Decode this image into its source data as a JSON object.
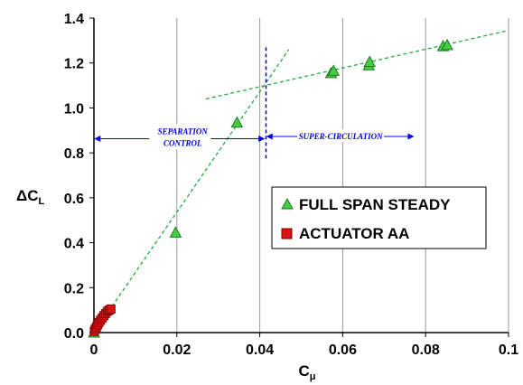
{
  "chart_data": {
    "type": "scatter",
    "xlim": [
      0,
      0.1
    ],
    "ylim": [
      0,
      1.4
    ],
    "x_ticks": [
      "0",
      "0.02",
      "0.04",
      "0.06",
      "0.08",
      "0.1"
    ],
    "y_ticks": [
      "0.0",
      "0.2",
      "0.4",
      "0.6",
      "0.8",
      "1.0",
      "1.2",
      "1.4"
    ],
    "x_tick_values": [
      0,
      0.02,
      0.04,
      0.06,
      0.08,
      0.1
    ],
    "y_tick_values": [
      0,
      0.2,
      0.4,
      0.6,
      0.8,
      1.0,
      1.2,
      1.4
    ],
    "xlabel": {
      "main": "C",
      "sub": "μ"
    },
    "ylabel": {
      "main": "ΔC",
      "sub": "L"
    },
    "grid": "vertical",
    "legend_position": "center-right",
    "series": [
      {
        "name": "FULL SPAN STEADY",
        "marker": "triangle",
        "color": "#44cc44",
        "points": [
          [
            0.0,
            0.0
          ],
          [
            0.0197,
            0.445
          ],
          [
            0.0345,
            0.935
          ],
          [
            0.0572,
            1.155
          ],
          [
            0.0578,
            1.165
          ],
          [
            0.0663,
            1.19
          ],
          [
            0.0665,
            1.205
          ],
          [
            0.0842,
            1.275
          ],
          [
            0.0852,
            1.28
          ]
        ]
      },
      {
        "name": "ACTUATOR AA",
        "marker": "square",
        "color": "#dd1111",
        "points": [
          [
            0.0001,
            0.005
          ],
          [
            0.0003,
            0.015
          ],
          [
            0.0006,
            0.025
          ],
          [
            0.0009,
            0.035
          ],
          [
            0.0012,
            0.045
          ],
          [
            0.0016,
            0.055
          ],
          [
            0.002,
            0.065
          ],
          [
            0.0024,
            0.075
          ],
          [
            0.0028,
            0.085
          ],
          [
            0.0033,
            0.095
          ],
          [
            0.0037,
            0.1
          ],
          [
            0.0041,
            0.105
          ]
        ]
      }
    ],
    "trend_lines": [
      {
        "from": [
          0.0,
          0.0
        ],
        "to": [
          0.047,
          1.26
        ],
        "color": "#22aa44",
        "dash": "dashed"
      },
      {
        "from": [
          0.027,
          1.04
        ],
        "to": [
          0.1,
          1.345
        ],
        "color": "#22aa44",
        "dash": "dashed"
      }
    ],
    "vertical_marker": {
      "x": 0.0415,
      "y_from": 0.775,
      "y_to": 1.27,
      "color": "#000099"
    },
    "annotations": [
      {
        "lines": [
          "SEPARATION",
          "CONTROL"
        ],
        "arrow_from": 0.0,
        "arrow_to": 0.0415,
        "arrow_y": 0.863
      },
      {
        "lines": [
          "SUPER-CIRCULATION"
        ],
        "arrow_from": 0.0415,
        "arrow_to": 0.0775,
        "arrow_y": 0.873
      }
    ]
  }
}
